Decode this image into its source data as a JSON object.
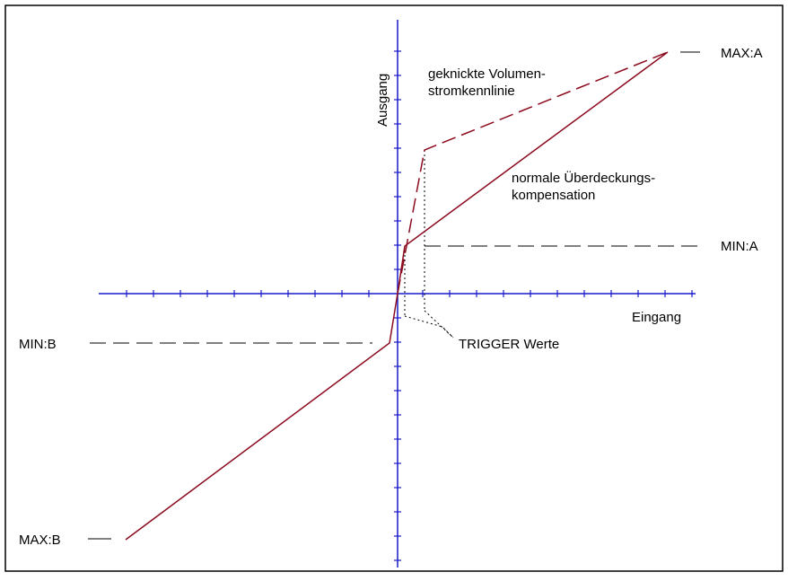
{
  "labels": {
    "max_a": "MAX:A",
    "min_a": "MIN:A",
    "min_b": "MIN:B",
    "max_b": "MAX:B",
    "y_axis": "Ausgang",
    "x_axis": "Eingang",
    "curve_kinked_line1": "geknickte Volumen-",
    "curve_kinked_line2": "stromkennlinie",
    "curve_normal_line1": "normale Überdeckungs-",
    "curve_normal_line2": "kompensation",
    "trigger": "TRIGGER Werte"
  },
  "colors": {
    "axis": "#1a1acc",
    "curve": "#8b0a1e",
    "text": "#000000",
    "border": "#000000"
  }
}
